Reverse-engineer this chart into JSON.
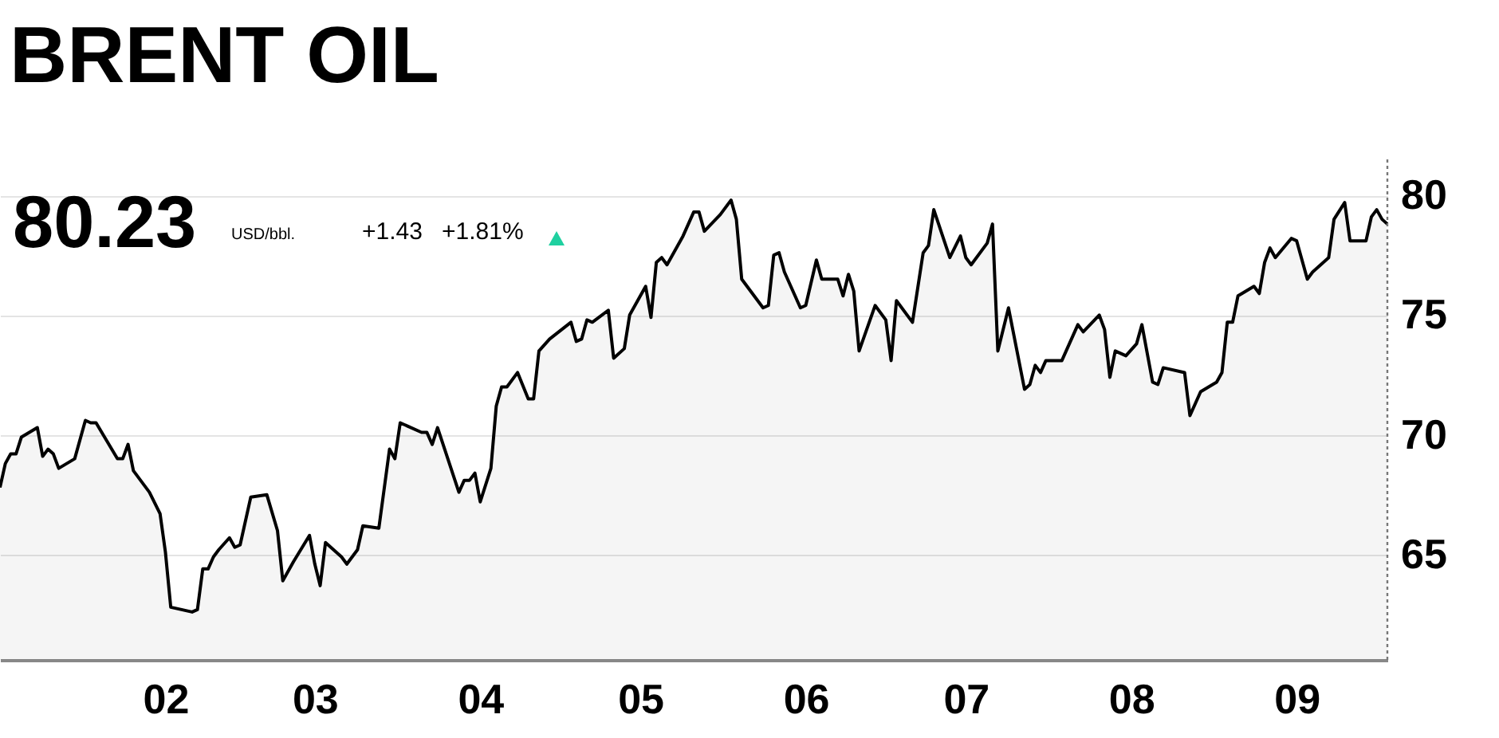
{
  "chart_data": {
    "type": "area",
    "title": "BRENT OIL",
    "annotations": [
      "80.23",
      "USD/bbl.",
      "+1.43",
      "+1.81%"
    ],
    "x": [
      "--01-01",
      "--01-02",
      "--01-03",
      "--01-04",
      "--01-05",
      "--01-08",
      "--01-09",
      "--01-10",
      "--01-11",
      "--01-12",
      "--01-15",
      "--01-17",
      "--01-18",
      "--01-19",
      "--01-23",
      "--01-24",
      "--01-25",
      "--01-26",
      "--01-29",
      "--01-31",
      "--02-01",
      "--02-02",
      "--02-06",
      "--02-07",
      "--02-08",
      "--02-09",
      "--02-10",
      "--02-11",
      "--02-13",
      "--02-14",
      "--02-15",
      "--02-17",
      "--02-20",
      "--02-22",
      "--02-23",
      "--02-25",
      "--02-28",
      "--03-01",
      "--03-02",
      "--03-03",
      "--03-06",
      "--03-07",
      "--03-09",
      "--03-10",
      "--03-13",
      "--03-15",
      "--03-16",
      "--03-17",
      "--03-21",
      "--03-22",
      "--03-23",
      "--03-24",
      "--03-28",
      "--03-29",
      "--03-30",
      "--03-31",
      "--04-01",
      "--04-03",
      "--04-04",
      "--04-05",
      "--04-06",
      "--04-08",
      "--04-10",
      "--04-11",
      "--04-12",
      "--04-14",
      "--04-18",
      "--04-19",
      "--04-20",
      "--04-21",
      "--04-22",
      "--04-25",
      "--04-26",
      "--04-28",
      "--04-29",
      "--05-02",
      "--05-03",
      "--05-04",
      "--05-05",
      "--05-06",
      "--05-09",
      "--05-11",
      "--05-12",
      "--05-13",
      "--05-16",
      "--05-18",
      "--05-19",
      "--05-20",
      "--05-24",
      "--05-25",
      "--05-26",
      "--05-27",
      "--05-28",
      "--05-31",
      "--06-01",
      "--06-03",
      "--06-04",
      "--06-07",
      "--06-08",
      "--06-09",
      "--06-10",
      "--06-11",
      "--06-14",
      "--06-16",
      "--06-17",
      "--06-18",
      "--06-21",
      "--06-23",
      "--06-24",
      "--06-25",
      "--06-28",
      "--06-30",
      "--07-01",
      "--07-02",
      "--07-05",
      "--07-06",
      "--07-07",
      "--07-09",
      "--07-12",
      "--07-13",
      "--07-14",
      "--07-15",
      "--07-16",
      "--07-19",
      "--07-22",
      "--07-23",
      "--07-26",
      "--07-27",
      "--07-28",
      "--07-29",
      "--07-31",
      "--08-02",
      "--08-03",
      "--08-05",
      "--08-06",
      "--08-07",
      "--08-11",
      "--08-12",
      "--08-14",
      "--08-17",
      "--08-18",
      "--08-19",
      "--08-20",
      "--08-21",
      "--08-24",
      "--08-25",
      "--08-26",
      "--08-27",
      "--08-28",
      "--08-31",
      "--09-01",
      "--09-03",
      "--09-04",
      "--09-07",
      "--09-08",
      "--09-10",
      "--09-11",
      "--09-14",
      "--09-15",
      "--09-16",
      "--09-17",
      "--09-18"
    ],
    "series": [
      {
        "color": "#000000",
        "values": [
          67.8,
          68.8,
          69.2,
          69.2,
          69.9,
          70.3,
          69.1,
          69.4,
          69.2,
          68.6,
          69.0,
          70.6,
          70.5,
          70.5,
          69.0,
          69.0,
          69.6,
          68.5,
          67.6,
          66.7,
          65.1,
          62.8,
          62.6,
          62.7,
          64.4,
          64.4,
          64.9,
          65.2,
          65.7,
          65.3,
          65.4,
          67.4,
          67.5,
          66.0,
          63.9,
          64.7,
          65.8,
          64.6,
          63.7,
          65.5,
          64.9,
          64.6,
          65.2,
          66.2,
          66.1,
          69.4,
          69.0,
          70.5,
          70.1,
          70.1,
          69.6,
          70.3,
          67.6,
          68.1,
          68.1,
          68.4,
          67.2,
          68.6,
          71.2,
          72.0,
          72.0,
          72.6,
          71.5,
          71.5,
          73.5,
          74.0,
          74.7,
          73.9,
          74.0,
          74.8,
          74.7,
          75.2,
          73.2,
          73.6,
          75.0,
          76.2,
          74.9,
          77.2,
          77.4,
          77.1,
          78.3,
          79.3,
          79.3,
          78.5,
          79.2,
          79.8,
          79.0,
          76.5,
          75.3,
          75.4,
          77.5,
          77.6,
          76.8,
          75.3,
          75.4,
          77.3,
          76.5,
          76.5,
          75.8,
          76.7,
          76.0,
          73.5,
          75.4,
          74.8,
          73.1,
          75.6,
          74.7,
          77.6,
          77.9,
          79.4,
          77.4,
          78.3,
          77.4,
          77.1,
          78.0,
          78.8,
          73.5,
          75.3,
          71.9,
          72.1,
          72.9,
          72.6,
          73.1,
          73.1,
          74.6,
          74.3,
          75.0,
          74.4,
          72.4,
          73.5,
          73.3,
          73.8,
          74.6,
          72.2,
          72.1,
          72.8,
          72.6,
          70.8,
          71.8,
          72.2,
          72.6,
          74.7,
          74.7,
          75.8,
          76.2,
          75.9,
          77.2,
          77.8,
          77.4,
          78.2,
          78.1,
          76.5,
          76.8,
          77.4,
          79.0,
          79.7,
          78.1,
          78.1,
          79.1,
          79.4,
          79.0,
          78.8
        ]
      }
    ],
    "xlim": [
      "--01-01",
      "--09-18"
    ],
    "ylim": [
      60.6,
      81.5
    ],
    "xticks": [
      {
        "value": "--02-01",
        "label": "02"
      },
      {
        "value": "--03-01",
        "label": "03"
      },
      {
        "value": "--04-01",
        "label": "04"
      },
      {
        "value": "--05-01",
        "label": "05"
      },
      {
        "value": "--06-01",
        "label": "06"
      },
      {
        "value": "--07-01",
        "label": "07"
      },
      {
        "value": "--08-01",
        "label": "08"
      },
      {
        "value": "--09-01",
        "label": "09"
      }
    ],
    "yticks": [
      65,
      70,
      75,
      80
    ],
    "grid": "y",
    "ref_lines": [
      {
        "axis": "x",
        "value": "--09-18",
        "line_style": "dotted"
      }
    ]
  }
}
